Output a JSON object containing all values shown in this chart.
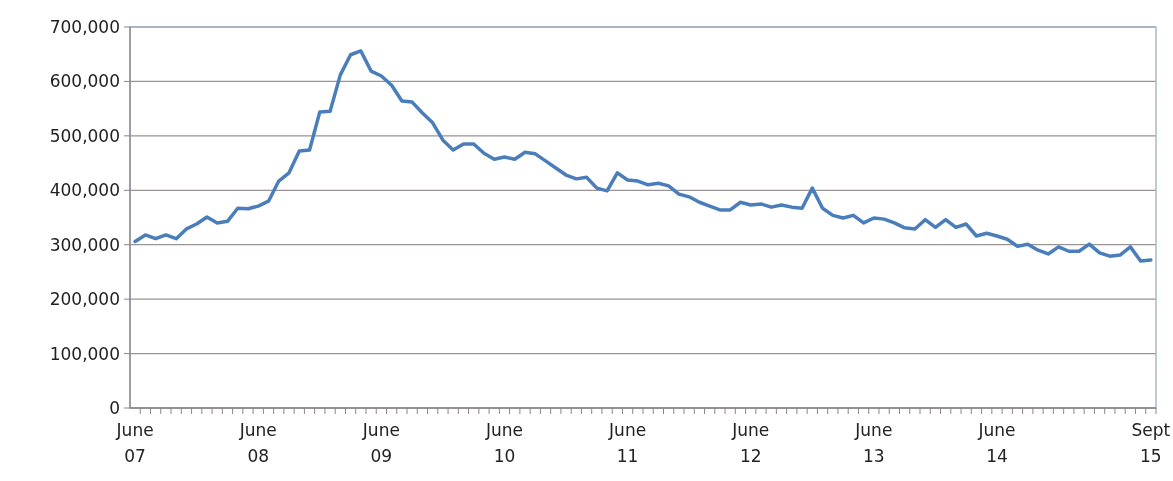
{
  "chart_data": {
    "type": "line",
    "categories": [
      "June 07",
      null,
      null,
      null,
      null,
      null,
      null,
      null,
      null,
      null,
      null,
      null,
      "June 08",
      null,
      null,
      null,
      null,
      null,
      null,
      null,
      null,
      null,
      null,
      null,
      "June 09",
      null,
      null,
      null,
      null,
      null,
      null,
      null,
      null,
      null,
      null,
      null,
      "June 10",
      null,
      null,
      null,
      null,
      null,
      null,
      null,
      null,
      null,
      null,
      null,
      "June 11",
      null,
      null,
      null,
      null,
      null,
      null,
      null,
      null,
      null,
      null,
      null,
      "June 12",
      null,
      null,
      null,
      null,
      null,
      null,
      null,
      null,
      null,
      null,
      null,
      "June 13",
      null,
      null,
      null,
      null,
      null,
      null,
      null,
      null,
      null,
      null,
      null,
      "June 14",
      null,
      null,
      null,
      null,
      null,
      null,
      null,
      null,
      null,
      null,
      null,
      null,
      null,
      null,
      "Sept 15"
    ],
    "series": [
      {
        "color": "#4a7ebb",
        "values": [
          306000,
          318000,
          311000,
          318000,
          311000,
          329000,
          338000,
          351000,
          340000,
          343000,
          367000,
          366000,
          371000,
          380000,
          417000,
          432000,
          472000,
          474000,
          544000,
          545000,
          612000,
          649000,
          656000,
          619000,
          610000,
          593000,
          564000,
          562000,
          542000,
          524000,
          492000,
          474000,
          485000,
          485000,
          468000,
          457000,
          461000,
          457000,
          470000,
          467000,
          454000,
          441000,
          428000,
          421000,
          424000,
          404000,
          399000,
          432000,
          419000,
          417000,
          410000,
          413000,
          408000,
          393000,
          388000,
          378000,
          371000,
          364000,
          364000,
          378000,
          373000,
          375000,
          369000,
          373000,
          369000,
          367000,
          404000,
          367000,
          354000,
          349000,
          354000,
          340000,
          349000,
          347000,
          340000,
          331000,
          329000,
          346000,
          332000,
          346000,
          332000,
          338000,
          316000,
          321000,
          316000,
          310000,
          297000,
          301000,
          290000,
          283000,
          296000,
          288000,
          288000,
          301000,
          285000,
          279000,
          281000,
          296000,
          270000,
          272000
        ]
      }
    ],
    "ylim": [
      0,
      700000
    ],
    "yticks": [
      {
        "value": 0,
        "label": "0"
      },
      {
        "value": 100000,
        "label": "100,000"
      },
      {
        "value": 200000,
        "label": "200,000"
      },
      {
        "value": 300000,
        "label": "300,000"
      },
      {
        "value": 400000,
        "label": "400,000"
      },
      {
        "value": 500000,
        "label": "500,000"
      },
      {
        "value": 600000,
        "label": "600,000"
      },
      {
        "value": 700000,
        "label": "700,000"
      }
    ],
    "grid": "y",
    "marker": "none",
    "line_style": "solid"
  }
}
